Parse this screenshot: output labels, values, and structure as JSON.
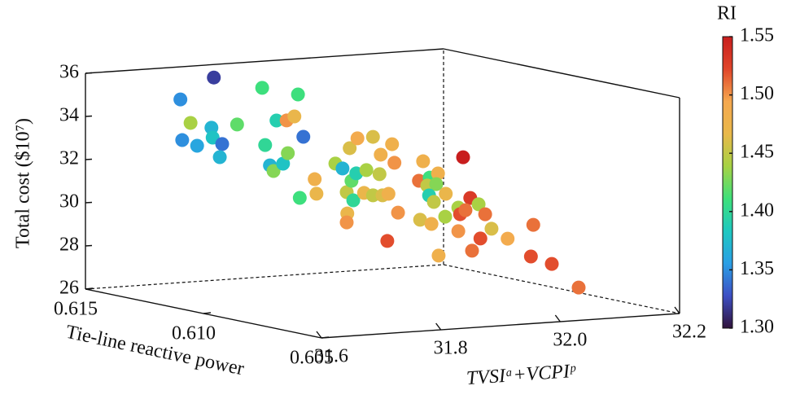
{
  "chart_data": {
    "type": "scatter3d",
    "xlabel": "TVSIᵃ+VCPIᵖ",
    "ylabel": "Tie-line reactive power",
    "zlabel": "Total cost ($10⁷)",
    "colorbar_label": "RI",
    "xlim": [
      31.6,
      32.2
    ],
    "xticks": [
      31.6,
      31.8,
      {
        "value": 32.0,
        "label": "32.0"
      },
      32.2
    ],
    "ylim": [
      0.605,
      0.615
    ],
    "yticks": [
      0.615,
      {
        "value": 0.61,
        "label": "0.610"
      },
      0.605
    ],
    "zlim": [
      26,
      36
    ],
    "zticks": [
      26,
      28,
      30,
      32,
      34,
      36
    ],
    "clim": [
      1.3,
      1.55
    ],
    "cticks": [
      {
        "value": 1.3,
        "label": "1.30"
      },
      1.35,
      {
        "value": 1.4,
        "label": "1.40"
      },
      1.45,
      {
        "value": 1.5,
        "label": "1.50"
      },
      1.55
    ],
    "colormap": [
      "#30123b",
      "#3d4fc4",
      "#2a9fe5",
      "#1ec8c0",
      "#3ee07a",
      "#a6d244",
      "#e9b84a",
      "#f5a84f",
      "#e0452a",
      "#c81e1e"
    ],
    "series": [
      {
        "x": [
          31.736,
          31.68,
          31.683,
          31.697,
          31.708,
          31.732,
          31.734,
          31.75,
          31.746,
          31.775,
          31.817,
          31.841,
          31.858,
          31.871,
          31.877,
          31.822,
          31.83,
          31.836,
          31.852,
          31.86,
          31.886,
          31.88,
          31.905,
          31.908,
          31.821,
          31.833,
          31.84,
          31.845,
          31.858,
          31.848,
          31.851,
          31.856,
          31.873,
          31.884,
          31.895,
          31.897,
          31.916,
          31.92,
          31.841,
          31.84,
          31.869,
          31.884,
          31.9,
          31.91,
          31.926,
          31.908,
          31.968,
          31.961,
          31.979,
          31.975,
          31.993,
          31.99,
          31.978,
          31.986,
          32.006,
          31.963,
          31.982,
          32.005,
          31.994,
          32.035,
          32.047,
          32.027,
          32.03,
          32.039,
          32.061,
          32.072,
          31.964,
          32.027,
          32.064,
          32.05,
          31.991,
          32.034,
          32.03,
          32.065,
          32.11
        ],
        "y": [
          0.613,
          0.613,
          0.613,
          0.613,
          0.613,
          0.613,
          0.613,
          0.613,
          0.613,
          0.613,
          0.613,
          0.613,
          0.613,
          0.613,
          0.613,
          0.613,
          0.613,
          0.613,
          0.613,
          0.613,
          0.613,
          0.613,
          0.613,
          0.613,
          0.61,
          0.61,
          0.61,
          0.61,
          0.61,
          0.61,
          0.61,
          0.61,
          0.61,
          0.61,
          0.61,
          0.61,
          0.61,
          0.61,
          0.61,
          0.61,
          0.61,
          0.61,
          0.61,
          0.61,
          0.61,
          0.61,
          0.61,
          0.61,
          0.61,
          0.61,
          0.61,
          0.61,
          0.61,
          0.61,
          0.61,
          0.61,
          0.61,
          0.61,
          0.61,
          0.61,
          0.61,
          0.61,
          0.61,
          0.61,
          0.61,
          0.61,
          0.607,
          0.61,
          0.61,
          0.61,
          0.607,
          0.607,
          0.607,
          0.607,
          0.607
        ],
        "z": [
          36.0,
          35.09,
          33.2,
          33.97,
          32.89,
          33.68,
          33.22,
          32.89,
          32.29,
          33.75,
          35.37,
          33.81,
          33.78,
          33.94,
          34.95,
          32.71,
          31.75,
          31.48,
          31.79,
          32.26,
          32.97,
          30.15,
          30.97,
          30.29,
          32.53,
          32.28,
          31.17,
          33.2,
          33.63,
          31.68,
          30.77,
          32.01,
          32.13,
          33.65,
          31.9,
          32.8,
          33.25,
          32.38,
          30.18,
          29.77,
          31.08,
          30.94,
          30.91,
          30.96,
          30.06,
          28.78,
          32.36,
          31.47,
          31.58,
          31.22,
          31.75,
          31.26,
          30.76,
          30.44,
          30.78,
          29.66,
          29.43,
          29.72,
          27.94,
          32.42,
          30.51,
          30.1,
          29.79,
          29.96,
          30.19,
          29.71,
          29.92,
          29.01,
          28.6,
          28.06,
          29.41,
          29.97,
          28.51,
          28.1,
          26.92
        ],
        "color_values": [
          1.32,
          1.35,
          1.35,
          1.44,
          1.36,
          1.37,
          1.38,
          1.34,
          1.37,
          1.42,
          1.41,
          1.39,
          1.5,
          1.47,
          1.41,
          1.4,
          1.37,
          1.43,
          1.38,
          1.43,
          1.34,
          1.41,
          1.48,
          1.47,
          1.44,
          1.37,
          1.45,
          1.46,
          1.49,
          1.42,
          1.4,
          1.39,
          1.44,
          1.46,
          1.45,
          1.48,
          1.48,
          1.5,
          1.47,
          1.5,
          1.47,
          1.45,
          1.46,
          1.48,
          1.5,
          1.52,
          1.48,
          1.51,
          1.41,
          1.45,
          1.48,
          1.43,
          1.39,
          1.45,
          1.47,
          1.46,
          1.48,
          1.44,
          1.48,
          1.55,
          1.53,
          1.44,
          1.52,
          1.51,
          1.44,
          1.51,
          1.46,
          1.5,
          1.52,
          1.51,
          1.49,
          1.51,
          1.52,
          1.52,
          1.51
        ]
      }
    ]
  }
}
